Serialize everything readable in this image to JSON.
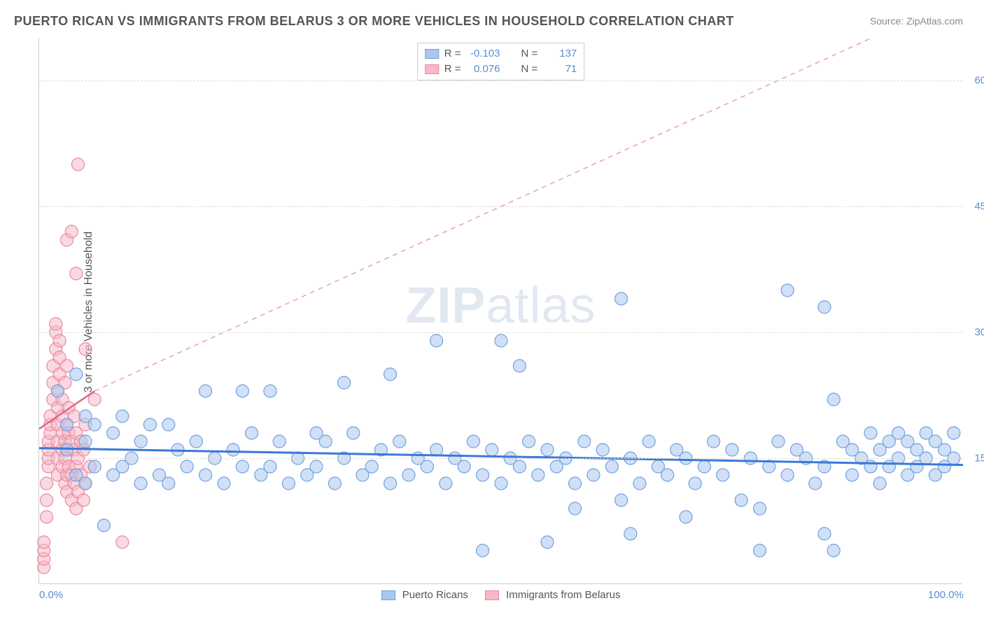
{
  "title": "PUERTO RICAN VS IMMIGRANTS FROM BELARUS 3 OR MORE VEHICLES IN HOUSEHOLD CORRELATION CHART",
  "source": "Source: ZipAtlas.com",
  "watermark_a": "ZIP",
  "watermark_b": "atlas",
  "y_axis_label": "3 or more Vehicles in Household",
  "chart": {
    "type": "scatter",
    "xlim": [
      0,
      100
    ],
    "ylim": [
      0,
      65
    ],
    "x_ticks": [
      {
        "v": 0,
        "label": "0.0%"
      },
      {
        "v": 100,
        "label": "100.0%"
      }
    ],
    "y_ticks": [
      {
        "v": 15,
        "label": "15.0%"
      },
      {
        "v": 30,
        "label": "30.0%"
      },
      {
        "v": 45,
        "label": "45.0%"
      },
      {
        "v": 60,
        "label": "60.0%"
      }
    ],
    "grid_color": "#dddddd",
    "background_color": "#ffffff",
    "axis_color": "#cccccc",
    "tick_label_color": "#5b8dd6",
    "marker_radius": 9,
    "marker_opacity": 0.55,
    "series": [
      {
        "name": "Puerto Ricans",
        "fill": "#a9c7ef",
        "stroke": "#6fa0df",
        "R": "-0.103",
        "N": "137",
        "trend": {
          "x1": 0,
          "y1": 16.2,
          "x2": 100,
          "y2": 14.2,
          "color": "#3b78d8",
          "width": 3,
          "dash": ""
        },
        "points": [
          [
            2,
            23
          ],
          [
            3,
            16
          ],
          [
            3,
            19
          ],
          [
            4,
            25
          ],
          [
            4,
            13
          ],
          [
            5,
            12
          ],
          [
            5,
            17
          ],
          [
            5,
            20
          ],
          [
            6,
            14
          ],
          [
            6,
            19
          ],
          [
            7,
            7
          ],
          [
            8,
            18
          ],
          [
            9,
            20
          ],
          [
            9,
            14
          ],
          [
            10,
            15
          ],
          [
            11,
            12
          ],
          [
            11,
            17
          ],
          [
            12,
            19
          ],
          [
            13,
            13
          ],
          [
            14,
            12
          ],
          [
            15,
            16
          ],
          [
            16,
            14
          ],
          [
            17,
            17
          ],
          [
            18,
            13
          ],
          [
            18,
            23
          ],
          [
            19,
            15
          ],
          [
            20,
            12
          ],
          [
            21,
            16
          ],
          [
            22,
            14
          ],
          [
            23,
            18
          ],
          [
            24,
            13
          ],
          [
            25,
            23
          ],
          [
            25,
            14
          ],
          [
            26,
            17
          ],
          [
            27,
            12
          ],
          [
            28,
            15
          ],
          [
            29,
            13
          ],
          [
            30,
            14
          ],
          [
            31,
            17
          ],
          [
            32,
            12
          ],
          [
            33,
            15
          ],
          [
            33,
            24
          ],
          [
            34,
            18
          ],
          [
            35,
            13
          ],
          [
            36,
            14
          ],
          [
            37,
            16
          ],
          [
            38,
            25
          ],
          [
            38,
            12
          ],
          [
            39,
            17
          ],
          [
            40,
            13
          ],
          [
            41,
            15
          ],
          [
            42,
            14
          ],
          [
            43,
            16
          ],
          [
            43,
            29
          ],
          [
            44,
            12
          ],
          [
            45,
            15
          ],
          [
            46,
            14
          ],
          [
            47,
            17
          ],
          [
            48,
            13
          ],
          [
            48,
            4
          ],
          [
            49,
            16
          ],
          [
            50,
            12
          ],
          [
            50,
            29
          ],
          [
            51,
            15
          ],
          [
            52,
            14
          ],
          [
            52,
            26
          ],
          [
            53,
            17
          ],
          [
            54,
            13
          ],
          [
            55,
            16
          ],
          [
            55,
            5
          ],
          [
            56,
            14
          ],
          [
            57,
            15
          ],
          [
            58,
            12
          ],
          [
            59,
            17
          ],
          [
            60,
            13
          ],
          [
            61,
            16
          ],
          [
            62,
            14
          ],
          [
            63,
            34
          ],
          [
            63,
            10
          ],
          [
            64,
            15
          ],
          [
            65,
            12
          ],
          [
            66,
            17
          ],
          [
            67,
            14
          ],
          [
            68,
            13
          ],
          [
            69,
            16
          ],
          [
            70,
            15
          ],
          [
            71,
            12
          ],
          [
            72,
            14
          ],
          [
            73,
            17
          ],
          [
            74,
            13
          ],
          [
            75,
            16
          ],
          [
            76,
            10
          ],
          [
            77,
            15
          ],
          [
            78,
            4
          ],
          [
            79,
            14
          ],
          [
            80,
            17
          ],
          [
            81,
            35
          ],
          [
            81,
            13
          ],
          [
            82,
            16
          ],
          [
            83,
            15
          ],
          [
            84,
            12
          ],
          [
            85,
            6
          ],
          [
            85,
            14
          ],
          [
            86,
            22
          ],
          [
            86,
            4
          ],
          [
            87,
            17
          ],
          [
            88,
            13
          ],
          [
            88,
            16
          ],
          [
            89,
            15
          ],
          [
            90,
            14
          ],
          [
            90,
            18
          ],
          [
            91,
            12
          ],
          [
            91,
            16
          ],
          [
            92,
            17
          ],
          [
            92,
            14
          ],
          [
            93,
            15
          ],
          [
            93,
            18
          ],
          [
            94,
            13
          ],
          [
            94,
            17
          ],
          [
            95,
            16
          ],
          [
            95,
            14
          ],
          [
            96,
            15
          ],
          [
            96,
            18
          ],
          [
            97,
            13
          ],
          [
            97,
            17
          ],
          [
            98,
            16
          ],
          [
            98,
            14
          ],
          [
            99,
            15
          ],
          [
            99,
            18
          ],
          [
            85,
            33
          ],
          [
            78,
            9
          ],
          [
            70,
            8
          ],
          [
            64,
            6
          ],
          [
            58,
            9
          ],
          [
            30,
            18
          ],
          [
            22,
            23
          ],
          [
            14,
            19
          ],
          [
            8,
            13
          ]
        ]
      },
      {
        "name": "Immigrants from Belarus",
        "fill": "#f6b9c6",
        "stroke": "#e887a0",
        "R": "0.076",
        "N": "71",
        "trend_solid": {
          "x1": 0,
          "y1": 18.5,
          "x2": 6,
          "y2": 23,
          "color": "#e06688",
          "width": 2.5
        },
        "trend_dash": {
          "x1": 6,
          "y1": 23,
          "x2": 90,
          "y2": 65,
          "color": "#e8a0b3",
          "width": 1.5
        },
        "points": [
          [
            0.5,
            2
          ],
          [
            0.5,
            3
          ],
          [
            0.5,
            4
          ],
          [
            0.5,
            5
          ],
          [
            0.8,
            8
          ],
          [
            0.8,
            10
          ],
          [
            0.8,
            12
          ],
          [
            1,
            14
          ],
          [
            1,
            15
          ],
          [
            1,
            16
          ],
          [
            1,
            17
          ],
          [
            1.2,
            18
          ],
          [
            1.2,
            19
          ],
          [
            1.2,
            20
          ],
          [
            1.5,
            22
          ],
          [
            1.5,
            24
          ],
          [
            1.5,
            26
          ],
          [
            1.8,
            28
          ],
          [
            1.8,
            30
          ],
          [
            1.8,
            31
          ],
          [
            2,
            13
          ],
          [
            2,
            15
          ],
          [
            2,
            17
          ],
          [
            2,
            19
          ],
          [
            2,
            21
          ],
          [
            2,
            23
          ],
          [
            2.2,
            25
          ],
          [
            2.2,
            27
          ],
          [
            2.2,
            29
          ],
          [
            2.5,
            14
          ],
          [
            2.5,
            16
          ],
          [
            2.5,
            18
          ],
          [
            2.5,
            20
          ],
          [
            2.5,
            22
          ],
          [
            2.8,
            12
          ],
          [
            2.8,
            15
          ],
          [
            2.8,
            17
          ],
          [
            2.8,
            24
          ],
          [
            3,
            11
          ],
          [
            3,
            13
          ],
          [
            3,
            16
          ],
          [
            3,
            19
          ],
          [
            3,
            26
          ],
          [
            3,
            41
          ],
          [
            3.2,
            14
          ],
          [
            3.2,
            18
          ],
          [
            3.2,
            21
          ],
          [
            3.5,
            10
          ],
          [
            3.5,
            13
          ],
          [
            3.5,
            17
          ],
          [
            3.5,
            42
          ],
          [
            3.8,
            12
          ],
          [
            3.8,
            16
          ],
          [
            3.8,
            20
          ],
          [
            4,
            9
          ],
          [
            4,
            14
          ],
          [
            4,
            18
          ],
          [
            4,
            37
          ],
          [
            4.2,
            11
          ],
          [
            4.2,
            15
          ],
          [
            4.2,
            50
          ],
          [
            4.5,
            13
          ],
          [
            4.5,
            17
          ],
          [
            4.8,
            10
          ],
          [
            4.8,
            16
          ],
          [
            5,
            12
          ],
          [
            5,
            19
          ],
          [
            5,
            28
          ],
          [
            5.5,
            14
          ],
          [
            6,
            22
          ],
          [
            9,
            5
          ]
        ]
      }
    ]
  },
  "legend_top": {
    "r_label": "R =",
    "n_label": "N ="
  },
  "legend_bottom": {
    "label_a": "Puerto Ricans",
    "label_b": "Immigrants from Belarus"
  }
}
